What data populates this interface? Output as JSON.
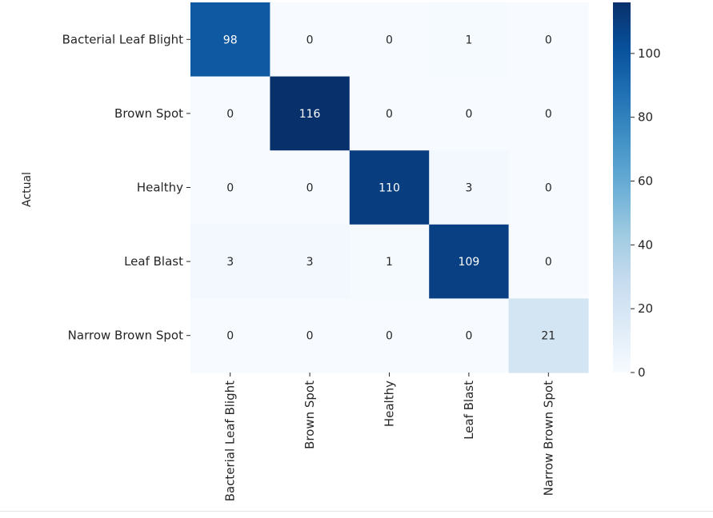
{
  "chart_data": {
    "type": "heatmap",
    "title": "",
    "ylabel": "Actual",
    "xlabel": "",
    "rows": [
      "Bacterial Leaf Blight",
      "Brown Spot",
      "Healthy",
      "Leaf Blast",
      "Narrow Brown Spot"
    ],
    "columns": [
      "Bacterial Leaf Blight",
      "Brown Spot",
      "Healthy",
      "Leaf Blast",
      "Narrow Brown Spot"
    ],
    "values": [
      [
        98,
        0,
        0,
        1,
        0
      ],
      [
        0,
        116,
        0,
        0,
        0
      ],
      [
        0,
        0,
        110,
        3,
        0
      ],
      [
        3,
        3,
        1,
        109,
        0
      ],
      [
        0,
        0,
        0,
        0,
        21
      ]
    ],
    "colorbar": {
      "range": [
        0,
        116
      ],
      "ticks": [
        "0",
        "20",
        "40",
        "60",
        "80",
        "100"
      ],
      "colormap": "Blues"
    },
    "colors": {
      "low": "#f7fbff",
      "high": "#08306b"
    }
  }
}
